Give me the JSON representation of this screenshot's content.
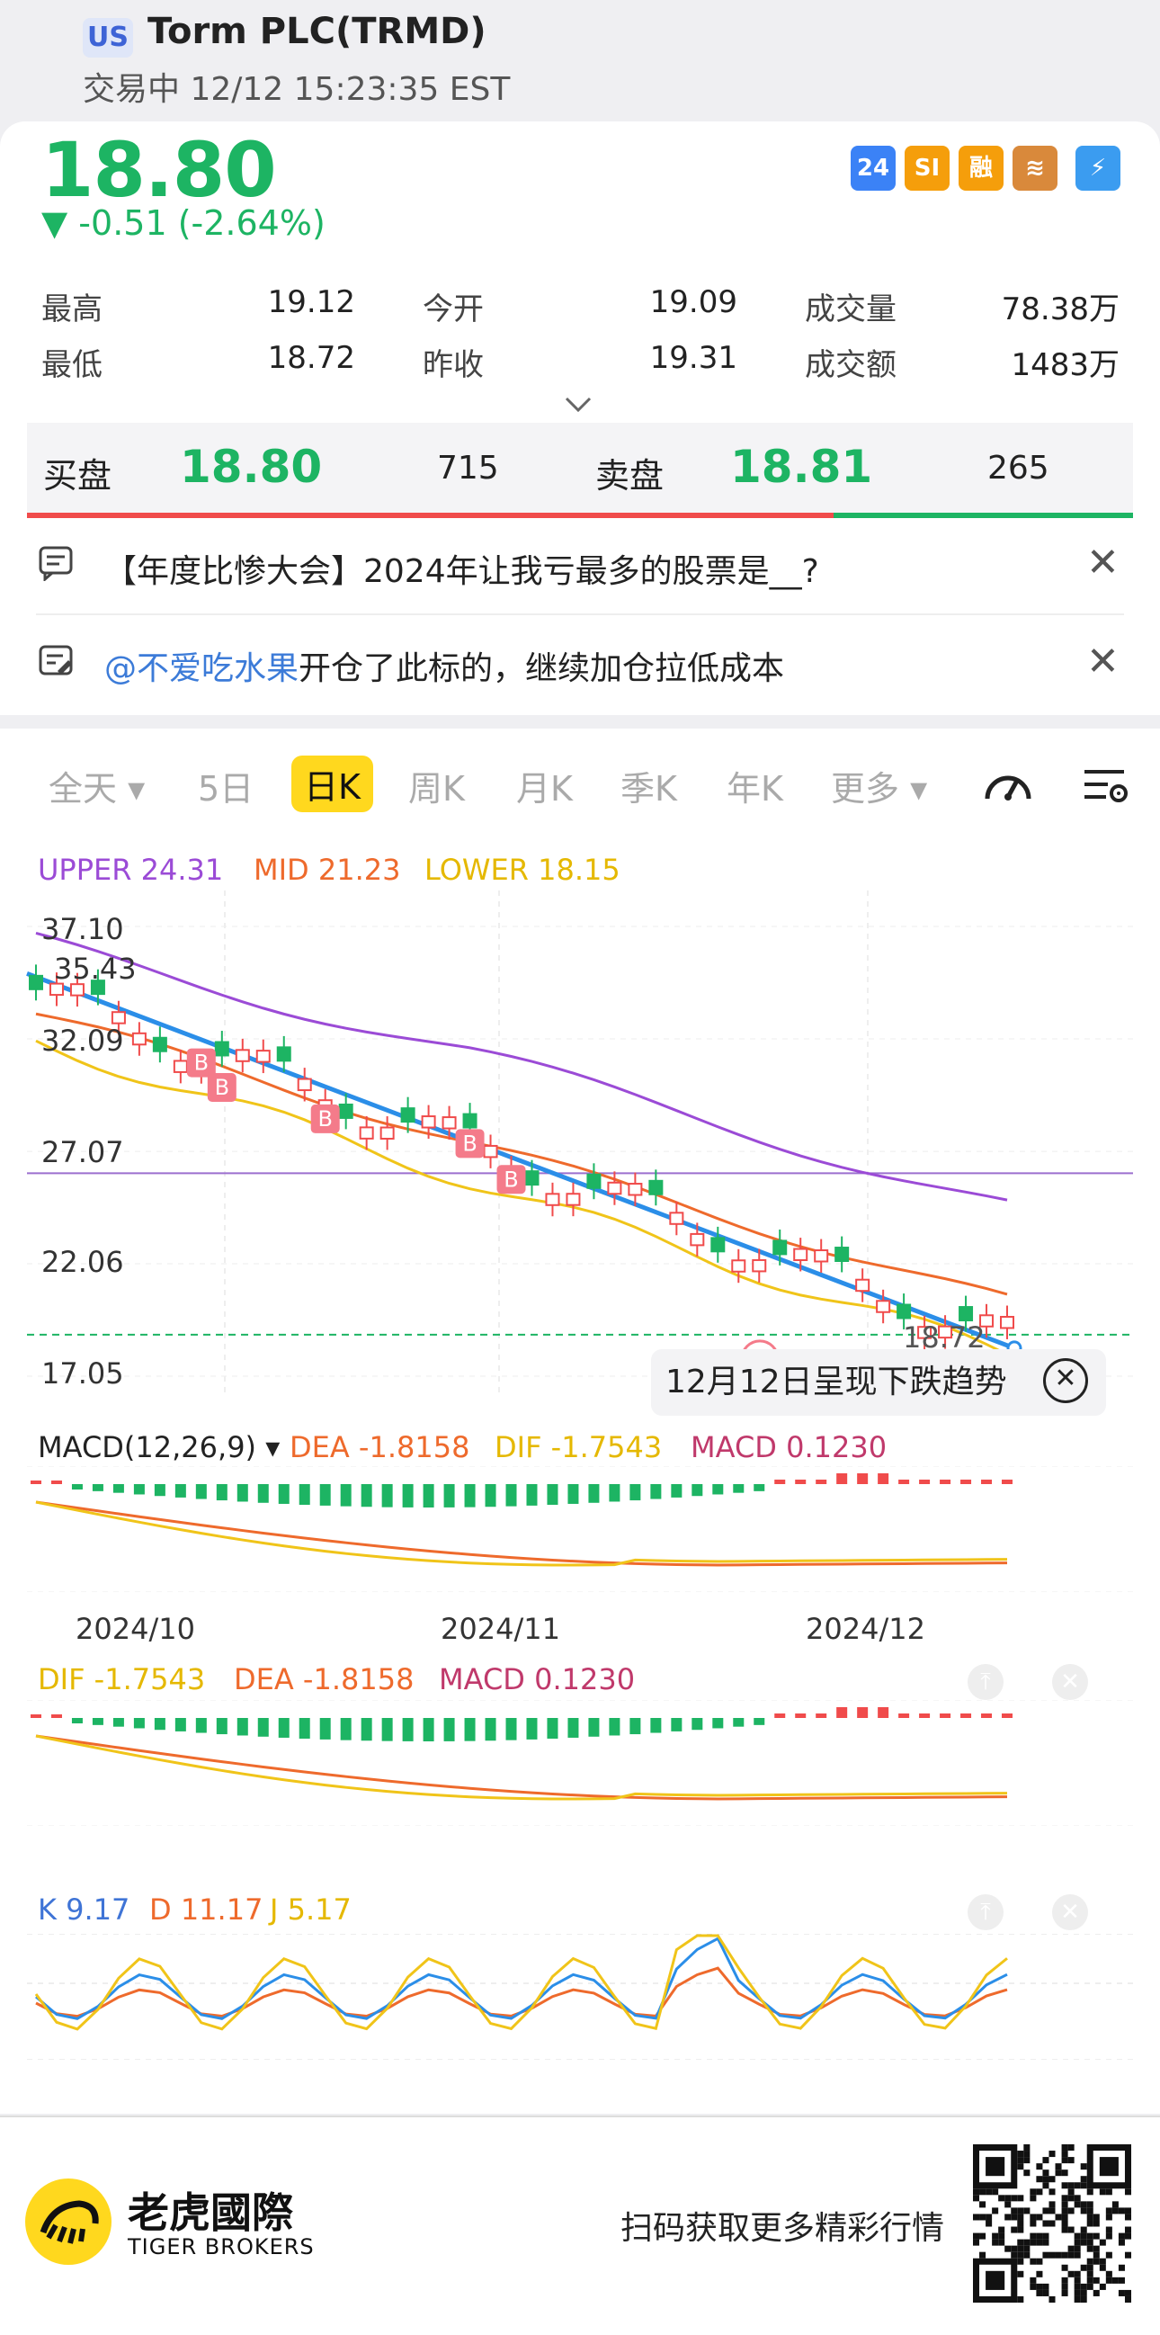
{
  "header": {
    "market_badge": "US",
    "title": "Torm PLC(TRMD)",
    "status": "交易中 12/12 15:23:35 EST"
  },
  "quote": {
    "price": "18.80",
    "change": "▼ -0.51 (-2.64%)",
    "icons": [
      {
        "label": "24",
        "name": "24h-trading-icon",
        "color": "#3b82f6"
      },
      {
        "label": "SI",
        "name": "short-interest-icon",
        "color": "#f59e0b"
      },
      {
        "label": "融",
        "name": "margin-icon",
        "color": "#f59e0b"
      },
      {
        "label": "≋",
        "name": "options-icon",
        "color": "#d9893b"
      },
      {
        "label": "⚡",
        "name": "lightning-icon",
        "color": "#3b9cf0"
      }
    ],
    "stats": {
      "high_label": "最高",
      "high": "19.12",
      "low_label": "最低",
      "low": "18.72",
      "open_label": "今开",
      "open": "19.09",
      "prev_close_label": "昨收",
      "prev_close": "19.31",
      "volume_label": "成交量",
      "volume": "78.38万",
      "turnover_label": "成交额",
      "turnover": "1483万"
    }
  },
  "orderbook": {
    "bid_label": "买盘",
    "bid_price": "18.80",
    "bid_size": "715",
    "ask_label": "卖盘",
    "ask_price": "18.81",
    "ask_size": "265"
  },
  "notices": [
    {
      "text": "【年度比惨大会】2024年让我亏最多的股票是__?"
    },
    {
      "mention": "@不爱吃水果",
      "text": "开仓了此标的，继续加仓拉低成本"
    }
  ],
  "tabs": [
    {
      "label": "全天 ▾"
    },
    {
      "label": "5日"
    },
    {
      "label": "日K",
      "active": true
    },
    {
      "label": "周K"
    },
    {
      "label": "月K"
    },
    {
      "label": "季K"
    },
    {
      "label": "年K"
    },
    {
      "label": "更多 ▾"
    }
  ],
  "boll": {
    "upper": "UPPER 24.31",
    "mid": "MID 21.23",
    "lower": "LOWER 18.15"
  },
  "price_axis": [
    "37.10",
    "35.43",
    "32.09",
    "27.07",
    "22.06",
    "17.05"
  ],
  "last_low_label": "18.72",
  "trend_tooltip": "12月12日呈现下跌趋势",
  "macd1": {
    "title": "MACD(12,26,9) ▾",
    "dea": "DEA -1.8158",
    "dif": "DIF -1.7543",
    "macd": "MACD 0.1230"
  },
  "date_axis": [
    "2024/10",
    "2024/11",
    "2024/12"
  ],
  "macd2": {
    "dif": "DIF -1.7543",
    "dea": "DEA -1.8158",
    "macd": "MACD 0.1230"
  },
  "kdj": {
    "k": "K 9.17",
    "d": "D 11.17",
    "j": "J 5.17"
  },
  "colors": {
    "up": "#f04b4b",
    "down": "#1db463",
    "upper": "#9b4bd6",
    "mid": "#ee6a2c",
    "lower": "#f0c419",
    "trend": "#2b8ee8"
  },
  "footer": {
    "brand_zh": "老虎國際",
    "brand_en": "TIGER BROKERS",
    "scan_text": "扫码获取更多精彩行情"
  }
}
